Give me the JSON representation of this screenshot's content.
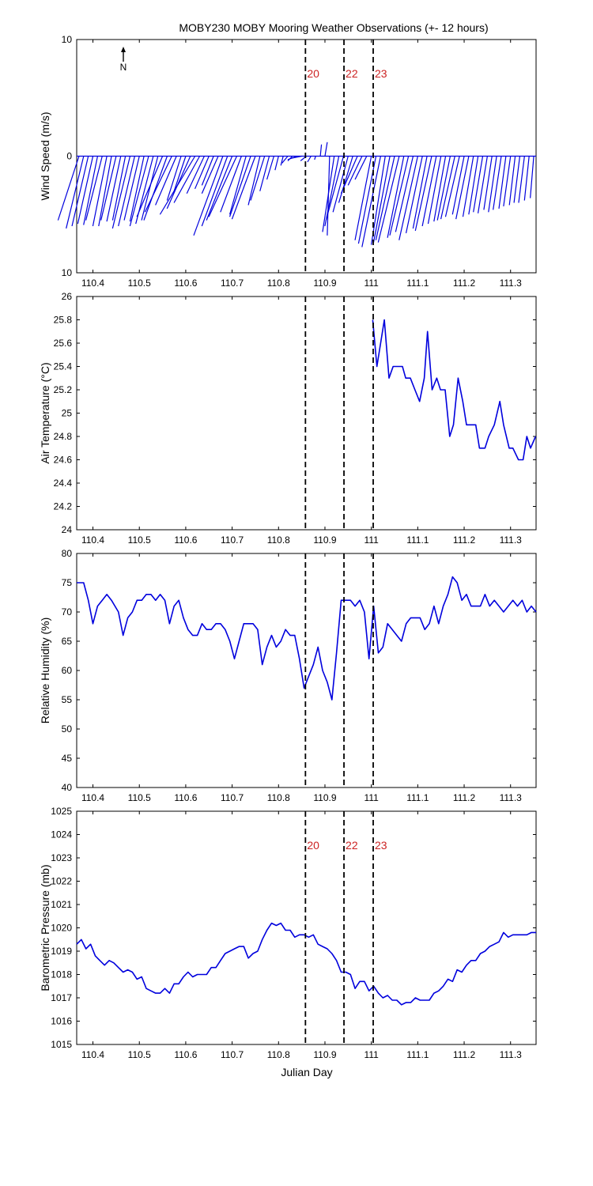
{
  "figure": {
    "title": "MOBY230 MOBY Mooring Weather Observations (+- 12 hours)",
    "xlabel": "Julian Day",
    "north_label": "N"
  },
  "colors": {
    "line": "#0000dd",
    "marker_text": "#cc2222",
    "marker_line": "#000000"
  },
  "xlim": [
    110.365,
    111.355
  ],
  "x_ticks": [
    110.4,
    110.5,
    110.6,
    110.7,
    110.8,
    110.9,
    111,
    111.1,
    111.2,
    111.3
  ],
  "x_tick_labels": [
    "110.4",
    "110.5",
    "110.6",
    "110.7",
    "110.8",
    "110.9",
    "111",
    "111.1",
    "111.2",
    "111.3"
  ],
  "markers": [
    {
      "x": 110.858,
      "label": "20"
    },
    {
      "x": 110.941,
      "label": "22"
    },
    {
      "x": 111.004,
      "label": "23"
    }
  ],
  "chart_data": [
    {
      "type": "line",
      "subtype": "wind-vectors",
      "ylabel": "Wind Speed (m/s)",
      "ylim": [
        -10,
        10
      ],
      "y_tick_labels": [
        "10",
        "0",
        "10"
      ],
      "y_ticks": [
        10,
        0,
        -10
      ],
      "show_markers": true,
      "series": [
        {
          "x": [
            110.37,
            110.38,
            110.39,
            110.4,
            110.41,
            110.42,
            110.43,
            110.44,
            110.45,
            110.46,
            110.47,
            110.48,
            110.49,
            110.5,
            110.51,
            110.52,
            110.53,
            110.54,
            110.55,
            110.56,
            110.57,
            110.58,
            110.59,
            110.6,
            110.61,
            110.62,
            110.63,
            110.64,
            110.65,
            110.66,
            110.67,
            110.68,
            110.69,
            110.7,
            110.71,
            110.72,
            110.73,
            110.74,
            110.75,
            110.76,
            110.77,
            110.78,
            110.79,
            110.8,
            110.81,
            110.82,
            110.83,
            110.84,
            110.85,
            110.86,
            110.87,
            110.88,
            110.89,
            110.9,
            110.91,
            110.92,
            110.93,
            110.94,
            110.95,
            110.96,
            110.97,
            110.98,
            110.99,
            111.0,
            111.01,
            111.02,
            111.03,
            111.04,
            111.05,
            111.06,
            111.07,
            111.08,
            111.09,
            111.1,
            111.11,
            111.12,
            111.13,
            111.14,
            111.15,
            111.16,
            111.17,
            111.18,
            111.19,
            111.2,
            111.21,
            111.22,
            111.23,
            111.24,
            111.25,
            111.26,
            111.27,
            111.28,
            111.29,
            111.3,
            111.31,
            111.32,
            111.33,
            111.34,
            111.35
          ],
          "u": [
            -1.8,
            -1.5,
            -1.4,
            -1.3,
            -1.2,
            -1.4,
            -1.2,
            -1.1,
            -1.3,
            -1.2,
            -1.1,
            -1.5,
            -1.4,
            -1.3,
            -1.2,
            -1.6,
            -1.5,
            -1.4,
            -2.2,
            -2.0,
            -2.3,
            -1.8,
            -1.2,
            -1.0,
            -2.0,
            -3.0,
            -2.2,
            -1.5,
            -1.2,
            -1.0,
            -1.4,
            -2.5,
            -2.2,
            -2.2,
            -2.4,
            -1.8,
            -1.4,
            -1.8,
            -2.0,
            -1.0,
            -1.2,
            -0.8,
            -0.6,
            -0.3,
            -0.2,
            -0.5,
            -0.4,
            -0.8,
            -1.0,
            -0.5,
            -0.3,
            -0.1,
            0.1,
            0.2,
            -0.2,
            -1.0,
            -1.2,
            -1.5,
            -1.3,
            -1.2,
            -1.4,
            -1.2,
            -1.0,
            -1.4,
            -1.5,
            -1.6,
            -1.2,
            -1.4,
            -1.6,
            -1.8,
            -1.4,
            -1.6,
            -1.5,
            -1.6,
            -1.4,
            -1.2,
            -1.4,
            -1.2,
            -1.1,
            -1.0,
            -1.1,
            -1.2,
            -1.2,
            -1.0,
            -1.1,
            -0.9,
            -0.8,
            -0.8,
            -0.8,
            -0.7,
            -0.7,
            -0.7,
            -0.6,
            -0.6,
            -0.5,
            -0.5,
            -0.5,
            -0.4,
            -0.3
          ],
          "v": [
            -5.5,
            -6.2,
            -6.0,
            -5.8,
            -5.9,
            -5.5,
            -6.0,
            -6.0,
            -5.5,
            -5.6,
            -5.5,
            -6.2,
            -6.0,
            -5.5,
            -5.6,
            -6.0,
            -5.8,
            -5.5,
            -5.2,
            -5.5,
            -4.8,
            -4.2,
            -3.8,
            -3.0,
            -4.5,
            -5.0,
            -4.0,
            -3.2,
            -2.8,
            -2.5,
            -3.2,
            -6.8,
            -6.0,
            -5.5,
            -5.2,
            -4.8,
            -5.0,
            -5.2,
            -5.4,
            -4.2,
            -3.8,
            -3.0,
            -2.0,
            -1.2,
            -0.8,
            -0.6,
            -0.4,
            -0.3,
            -0.2,
            -0.4,
            -0.5,
            -0.3,
            1.0,
            1.2,
            -6.8,
            -6.5,
            -6.0,
            -5.5,
            -4.8,
            -4.0,
            -3.2,
            -2.5,
            -2.0,
            -7.2,
            -7.5,
            -7.8,
            -7.6,
            -7.4,
            -7.2,
            -7.4,
            -7.0,
            -6.8,
            -6.5,
            -7.2,
            -6.6,
            -6.2,
            -6.4,
            -6.0,
            -5.8,
            -5.6,
            -5.5,
            -5.4,
            -5.2,
            -5.0,
            -5.4,
            -5.2,
            -5.0,
            -4.8,
            -4.9,
            -4.6,
            -4.8,
            -4.6,
            -4.5,
            -4.3,
            -4.2,
            -4.0,
            -4.0,
            -3.8,
            -3.6
          ]
        }
      ]
    },
    {
      "type": "line",
      "ylabel": "Air Temperature (°C)",
      "ylim": [
        24,
        26
      ],
      "y_tick_labels": [
        "24",
        "24.2",
        "24.4",
        "24.6",
        "24.8",
        "25",
        "25.2",
        "25.4",
        "25.6",
        "25.8",
        "26"
      ],
      "y_ticks": [
        24,
        24.2,
        24.4,
        24.6,
        24.8,
        25,
        25.2,
        25.4,
        25.6,
        25.8,
        26
      ],
      "show_markers": false,
      "series": [
        {
          "x": [
            111.003,
            111.012,
            111.028,
            111.038,
            111.047,
            111.057,
            111.067,
            111.074,
            111.084,
            111.094,
            111.104,
            111.114,
            111.121,
            111.131,
            111.141,
            111.149,
            111.159,
            111.169,
            111.177,
            111.187,
            111.197,
            111.205,
            111.215,
            111.225,
            111.233,
            111.245,
            111.253,
            111.265,
            111.277,
            111.285,
            111.297,
            111.305,
            111.317,
            111.327,
            111.335,
            111.343,
            111.354
          ],
          "y": [
            25.8,
            25.4,
            25.8,
            25.3,
            25.4,
            25.4,
            25.4,
            25.3,
            25.3,
            25.2,
            25.1,
            25.3,
            25.7,
            25.2,
            25.3,
            25.2,
            25.2,
            24.8,
            24.9,
            25.3,
            25.1,
            24.9,
            24.9,
            24.9,
            24.7,
            24.7,
            24.8,
            24.9,
            25.1,
            24.9,
            24.7,
            24.7,
            24.6,
            24.6,
            24.8,
            24.7,
            24.8
          ]
        }
      ]
    },
    {
      "type": "line",
      "ylabel": "Relative Humidity (%)",
      "ylim": [
        40,
        80
      ],
      "y_tick_labels": [
        "40",
        "45",
        "50",
        "55",
        "60",
        "65",
        "70",
        "75",
        "80"
      ],
      "y_ticks": [
        40,
        45,
        50,
        55,
        60,
        65,
        70,
        75,
        80
      ],
      "show_markers": false,
      "series": [
        {
          "x": [
            110.365,
            110.38,
            110.39,
            110.4,
            110.41,
            110.42,
            110.43,
            110.44,
            110.455,
            110.465,
            110.475,
            110.485,
            110.495,
            110.505,
            110.515,
            110.525,
            110.535,
            110.545,
            110.555,
            110.565,
            110.575,
            110.585,
            110.595,
            110.605,
            110.615,
            110.625,
            110.635,
            110.645,
            110.655,
            110.665,
            110.675,
            110.685,
            110.695,
            110.705,
            110.715,
            110.725,
            110.735,
            110.745,
            110.755,
            110.765,
            110.775,
            110.785,
            110.795,
            110.805,
            110.815,
            110.825,
            110.835,
            110.845,
            110.855,
            110.865,
            110.875,
            110.885,
            110.895,
            110.905,
            110.915,
            110.925,
            110.935,
            110.945,
            110.955,
            110.965,
            110.975,
            110.985,
            110.995,
            111.005,
            111.015,
            111.025,
            111.035,
            111.045,
            111.055,
            111.065,
            111.075,
            111.085,
            111.095,
            111.105,
            111.115,
            111.125,
            111.135,
            111.145,
            111.155,
            111.165,
            111.175,
            111.185,
            111.195,
            111.205,
            111.215,
            111.225,
            111.235,
            111.245,
            111.255,
            111.265,
            111.275,
            111.285,
            111.295,
            111.305,
            111.315,
            111.325,
            111.335,
            111.345,
            111.355
          ],
          "y": [
            75,
            75,
            72,
            68,
            71,
            72,
            73,
            72,
            70,
            66,
            69,
            70,
            72,
            72,
            73,
            73,
            72,
            73,
            72,
            68,
            71,
            72,
            69,
            67,
            66,
            66,
            68,
            67,
            67,
            68,
            68,
            67,
            65,
            62,
            65,
            68,
            68,
            68,
            67,
            61,
            64,
            66,
            64,
            65,
            67,
            66,
            66,
            62,
            57,
            59,
            61,
            64,
            60,
            58,
            55,
            63,
            72,
            72,
            72,
            71,
            72,
            70,
            62,
            71,
            63,
            64,
            68,
            67,
            66,
            65,
            68,
            69,
            69,
            69,
            67,
            68,
            71,
            68,
            71,
            73,
            76,
            75,
            72,
            73,
            71,
            71,
            71,
            73,
            71,
            72,
            71,
            70,
            71,
            72,
            71,
            72,
            70,
            71,
            70
          ]
        }
      ]
    },
    {
      "type": "line",
      "ylabel": "Barometric Pressure (mb)",
      "ylim": [
        1015,
        1025
      ],
      "y_tick_labels": [
        "1015",
        "1016",
        "1017",
        "1018",
        "1019",
        "1020",
        "1021",
        "1022",
        "1023",
        "1024",
        "1025"
      ],
      "y_ticks": [
        1015,
        1016,
        1017,
        1018,
        1019,
        1020,
        1021,
        1022,
        1023,
        1024,
        1025
      ],
      "show_markers": true,
      "series": [
        {
          "x": [
            110.365,
            110.375,
            110.385,
            110.395,
            110.405,
            110.415,
            110.425,
            110.435,
            110.445,
            110.455,
            110.465,
            110.475,
            110.485,
            110.495,
            110.505,
            110.515,
            110.525,
            110.535,
            110.545,
            110.555,
            110.565,
            110.575,
            110.585,
            110.595,
            110.605,
            110.615,
            110.625,
            110.635,
            110.645,
            110.655,
            110.665,
            110.675,
            110.685,
            110.695,
            110.705,
            110.715,
            110.725,
            110.735,
            110.745,
            110.755,
            110.765,
            110.775,
            110.785,
            110.795,
            110.805,
            110.815,
            110.825,
            110.835,
            110.845,
            110.855,
            110.865,
            110.875,
            110.885,
            110.895,
            110.905,
            110.915,
            110.925,
            110.935,
            110.945,
            110.955,
            110.965,
            110.975,
            110.985,
            110.995,
            111.005,
            111.015,
            111.025,
            111.035,
            111.045,
            111.055,
            111.065,
            111.075,
            111.085,
            111.095,
            111.105,
            111.115,
            111.125,
            111.135,
            111.145,
            111.155,
            111.165,
            111.175,
            111.185,
            111.195,
            111.205,
            111.215,
            111.225,
            111.235,
            111.245,
            111.255,
            111.265,
            111.275,
            111.285,
            111.295,
            111.305,
            111.315,
            111.325,
            111.335,
            111.345,
            111.355
          ],
          "y": [
            1019.3,
            1019.5,
            1019.1,
            1019.3,
            1018.8,
            1018.6,
            1018.4,
            1018.6,
            1018.5,
            1018.3,
            1018.1,
            1018.2,
            1018.1,
            1017.8,
            1017.9,
            1017.4,
            1017.3,
            1017.2,
            1017.2,
            1017.4,
            1017.2,
            1017.6,
            1017.6,
            1017.9,
            1018.1,
            1017.9,
            1018.0,
            1018.0,
            1018.0,
            1018.3,
            1018.3,
            1018.6,
            1018.9,
            1019.0,
            1019.1,
            1019.2,
            1019.2,
            1018.7,
            1018.9,
            1019.0,
            1019.5,
            1019.9,
            1020.2,
            1020.1,
            1020.2,
            1019.9,
            1019.9,
            1019.6,
            1019.7,
            1019.7,
            1019.6,
            1019.7,
            1019.3,
            1019.2,
            1019.1,
            1018.9,
            1018.6,
            1018.1,
            1018.1,
            1018.0,
            1017.4,
            1017.7,
            1017.7,
            1017.3,
            1017.5,
            1017.2,
            1017.0,
            1017.1,
            1016.9,
            1016.9,
            1016.7,
            1016.8,
            1016.8,
            1017.0,
            1016.9,
            1016.9,
            1016.9,
            1017.2,
            1017.3,
            1017.5,
            1017.8,
            1017.7,
            1018.2,
            1018.1,
            1018.4,
            1018.6,
            1018.6,
            1018.9,
            1019.0,
            1019.2,
            1019.3,
            1019.4,
            1019.8,
            1019.6,
            1019.7,
            1019.7,
            1019.7,
            1019.7,
            1019.8,
            1019.8
          ]
        }
      ]
    }
  ]
}
